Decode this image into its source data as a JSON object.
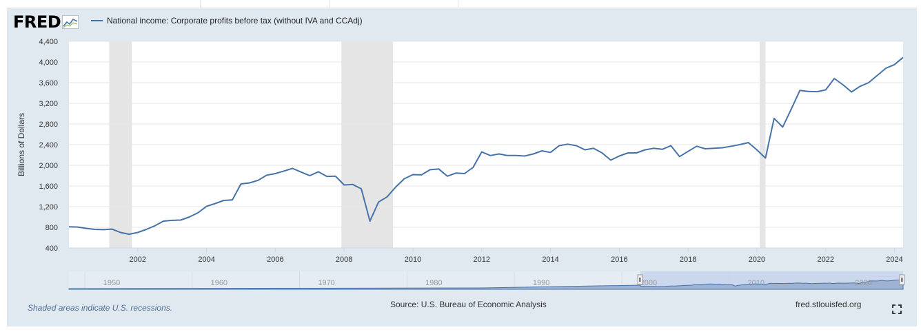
{
  "header": {
    "logo_text": "FRED",
    "legend_label": "National income: Corporate profits before tax (without IVA and CCAdj)"
  },
  "footer": {
    "recession_note": "Shaded areas indicate U.S. recessions.",
    "source": "Source: U.S. Bureau of Economic Analysis",
    "site": "fred.stlouisfed.org"
  },
  "colors": {
    "series": "#4572a7",
    "recession": "#e5e5e5",
    "panel": "#e1e9f0",
    "navigator_selection": "#c6d3ea"
  },
  "icons": {
    "logo_graph": "line-graph-icon",
    "fullscreen": "fullscreen-icon"
  },
  "chart_data": {
    "type": "line",
    "ylabel": "Billions of Dollars",
    "xlabel": "",
    "xlim": [
      2000.0,
      2024.25
    ],
    "ylim": [
      400,
      4400
    ],
    "y_ticks": [
      400,
      800,
      1200,
      1600,
      2000,
      2400,
      2800,
      3200,
      3600,
      4000,
      4400
    ],
    "y_tick_labels": [
      "400",
      "800",
      "1,200",
      "1,600",
      "2,000",
      "2,400",
      "2,800",
      "3,200",
      "3,600",
      "4,000",
      "4,400"
    ],
    "x_ticks": [
      2002,
      2004,
      2006,
      2008,
      2010,
      2012,
      2014,
      2016,
      2018,
      2020,
      2022,
      2024
    ],
    "x_tick_labels": [
      "2002",
      "2004",
      "2006",
      "2008",
      "2010",
      "2012",
      "2014",
      "2016",
      "2018",
      "2020",
      "2022",
      "2024"
    ],
    "grid": true,
    "legend_position": "top-left",
    "recessions": [
      [
        2001.17,
        2001.83
      ],
      [
        2007.92,
        2009.42
      ],
      [
        2020.08,
        2020.25
      ]
    ],
    "series": [
      {
        "name": "National income: Corporate profits before tax (without IVA and CCAdj)",
        "x": [
          2000.0,
          2000.25,
          2000.5,
          2000.75,
          2001.0,
          2001.25,
          2001.5,
          2001.75,
          2002.0,
          2002.25,
          2002.5,
          2002.75,
          2003.0,
          2003.25,
          2003.5,
          2003.75,
          2004.0,
          2004.25,
          2004.5,
          2004.75,
          2005.0,
          2005.25,
          2005.5,
          2005.75,
          2006.0,
          2006.25,
          2006.5,
          2006.75,
          2007.0,
          2007.25,
          2007.5,
          2007.75,
          2008.0,
          2008.25,
          2008.5,
          2008.75,
          2009.0,
          2009.25,
          2009.5,
          2009.75,
          2010.0,
          2010.25,
          2010.5,
          2010.75,
          2011.0,
          2011.25,
          2011.5,
          2011.75,
          2012.0,
          2012.25,
          2012.5,
          2012.75,
          2013.0,
          2013.25,
          2013.5,
          2013.75,
          2014.0,
          2014.25,
          2014.5,
          2014.75,
          2015.0,
          2015.25,
          2015.5,
          2015.75,
          2016.0,
          2016.25,
          2016.5,
          2016.75,
          2017.0,
          2017.25,
          2017.5,
          2017.75,
          2018.0,
          2018.25,
          2018.5,
          2018.75,
          2019.0,
          2019.25,
          2019.5,
          2019.75,
          2020.0,
          2020.25,
          2020.5,
          2020.75,
          2021.0,
          2021.25,
          2021.5,
          2021.75,
          2022.0,
          2022.25,
          2022.5,
          2022.75,
          2023.0,
          2023.25,
          2023.5,
          2023.75,
          2024.0,
          2024.25
        ],
        "values": [
          810,
          805,
          780,
          760,
          755,
          765,
          700,
          665,
          700,
          760,
          830,
          920,
          935,
          940,
          1000,
          1080,
          1205,
          1260,
          1320,
          1330,
          1640,
          1660,
          1710,
          1810,
          1840,
          1890,
          1940,
          1870,
          1800,
          1875,
          1785,
          1790,
          1620,
          1630,
          1545,
          920,
          1290,
          1390,
          1580,
          1740,
          1820,
          1815,
          1915,
          1930,
          1790,
          1850,
          1840,
          1960,
          2260,
          2190,
          2220,
          2190,
          2190,
          2180,
          2220,
          2280,
          2250,
          2380,
          2410,
          2380,
          2300,
          2330,
          2240,
          2100,
          2180,
          2240,
          2240,
          2300,
          2330,
          2310,
          2380,
          2170,
          2270,
          2370,
          2320,
          2330,
          2340,
          2370,
          2400,
          2440,
          2300,
          2140,
          2910,
          2740,
          3090,
          3450,
          3430,
          3425,
          3460,
          3680,
          3560,
          3420,
          3530,
          3600,
          3740,
          3880,
          3950,
          4090
        ]
      }
    ],
    "navigator": {
      "x_tick_labels": [
        "1950",
        "1960",
        "1970",
        "1980",
        "1990",
        "2000",
        "2010",
        "2020"
      ],
      "selection": [
        "2000",
        "2024"
      ]
    }
  }
}
